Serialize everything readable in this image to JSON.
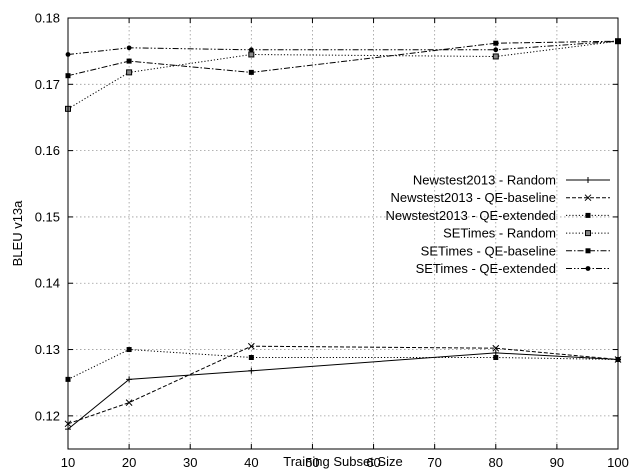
{
  "chart_data": {
    "type": "line",
    "title": "",
    "xlabel": "Training Subset Size",
    "ylabel": "BLEU v13a",
    "xlim": [
      10,
      100
    ],
    "ylim": [
      0.115,
      0.18
    ],
    "x_ticks": [
      10,
      20,
      30,
      40,
      50,
      60,
      70,
      80,
      90,
      100
    ],
    "y_ticks": [
      0.12,
      0.13,
      0.14,
      0.15,
      0.16,
      0.17,
      0.18
    ],
    "x_tick_labels": [
      "10",
      "20",
      "30",
      "40",
      "50",
      "60",
      "70",
      "80",
      "90",
      "100"
    ],
    "y_tick_labels": [
      "0.12",
      "0.13",
      "0.14",
      "0.15",
      "0.16",
      "0.17",
      "0.18"
    ],
    "grid": true,
    "legend_position": "center-right",
    "series": [
      {
        "name": "Newstest2013 - Random",
        "marker": "plus",
        "dash": "solid",
        "x": [
          10,
          20,
          40,
          80,
          100
        ],
        "values": [
          0.118,
          0.1255,
          0.1268,
          0.1295,
          0.1285
        ]
      },
      {
        "name": "Newstest2013 - QE-baseline",
        "marker": "cross",
        "dash": "dashed",
        "x": [
          10,
          20,
          40,
          80,
          100
        ],
        "values": [
          0.1188,
          0.122,
          0.1305,
          0.1302,
          0.1285
        ]
      },
      {
        "name": "Newstest2013 - QE-extended",
        "marker": "square-filled",
        "dash": "dotted",
        "x": [
          10,
          20,
          40,
          80,
          100
        ],
        "values": [
          0.1255,
          0.13,
          0.1288,
          0.1288,
          0.1285
        ]
      },
      {
        "name": "SETimes - Random",
        "marker": "square-open",
        "dash": "dotted",
        "x": [
          10,
          20,
          40,
          80,
          100
        ],
        "values": [
          0.1663,
          0.1718,
          0.1745,
          0.1742,
          0.1765
        ]
      },
      {
        "name": "SETimes - QE-baseline",
        "marker": "square-filled",
        "dash": "dashdot",
        "x": [
          10,
          20,
          40,
          80,
          100
        ],
        "values": [
          0.1713,
          0.1735,
          0.1718,
          0.1762,
          0.1765
        ]
      },
      {
        "name": "SETimes - QE-extended",
        "marker": "circle",
        "dash": "dashdotdot",
        "x": [
          10,
          20,
          40,
          80,
          100
        ],
        "values": [
          0.1745,
          0.1755,
          0.1752,
          0.1752,
          0.1765
        ]
      }
    ]
  }
}
